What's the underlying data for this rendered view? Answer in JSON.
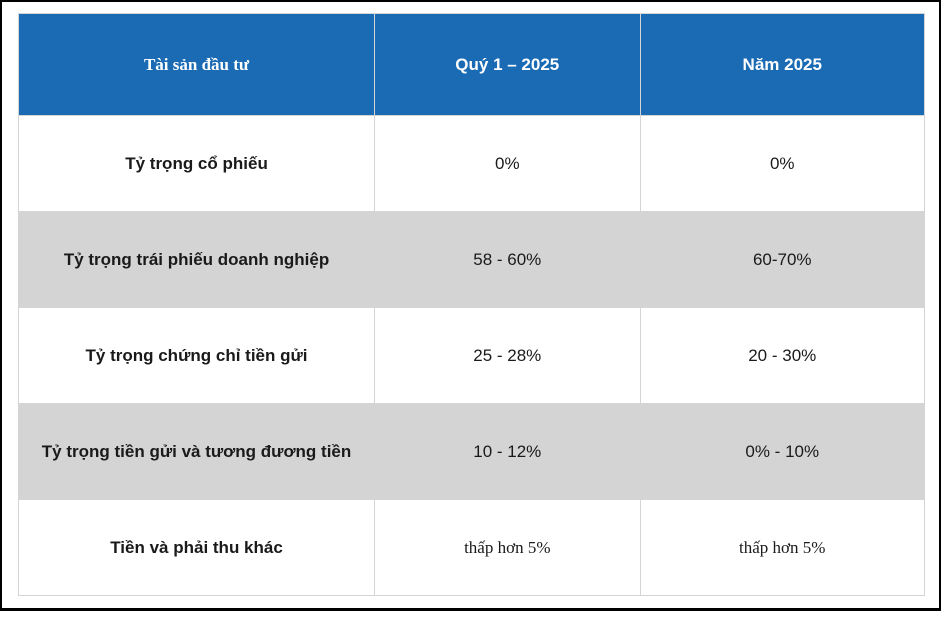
{
  "colors": {
    "header_bg": "#1B6BB4",
    "header_text": "#FFFFFF",
    "alt_row_bg": "#D4D4D4",
    "cell_border": "#D5D5D5",
    "text": "#1A1A1A",
    "frame": "#000000"
  },
  "table": {
    "header": {
      "asset_label": "Tài sản đầu tư",
      "q1_label": "Quý 1 – 2025",
      "year_label": "Năm 2025"
    },
    "rows": [
      {
        "label": "Tỷ trọng cổ phiếu",
        "q1": "0%",
        "year": "0%"
      },
      {
        "label": "Tỷ trọng trái phiếu doanh nghiệp",
        "q1": "58 - 60%",
        "year": "60-70%"
      },
      {
        "label": "Tỷ trọng chứng chỉ tiền gửi",
        "q1": "25 - 28%",
        "year": "20 - 30%"
      },
      {
        "label": "Tỷ trọng tiền gửi và tương đương tiền",
        "q1": "10 - 12%",
        "year": "0% - 10%"
      },
      {
        "label": "Tiền và phải thu khác",
        "q1": "thấp hơn 5%",
        "year": "thấp hơn 5%"
      }
    ]
  }
}
